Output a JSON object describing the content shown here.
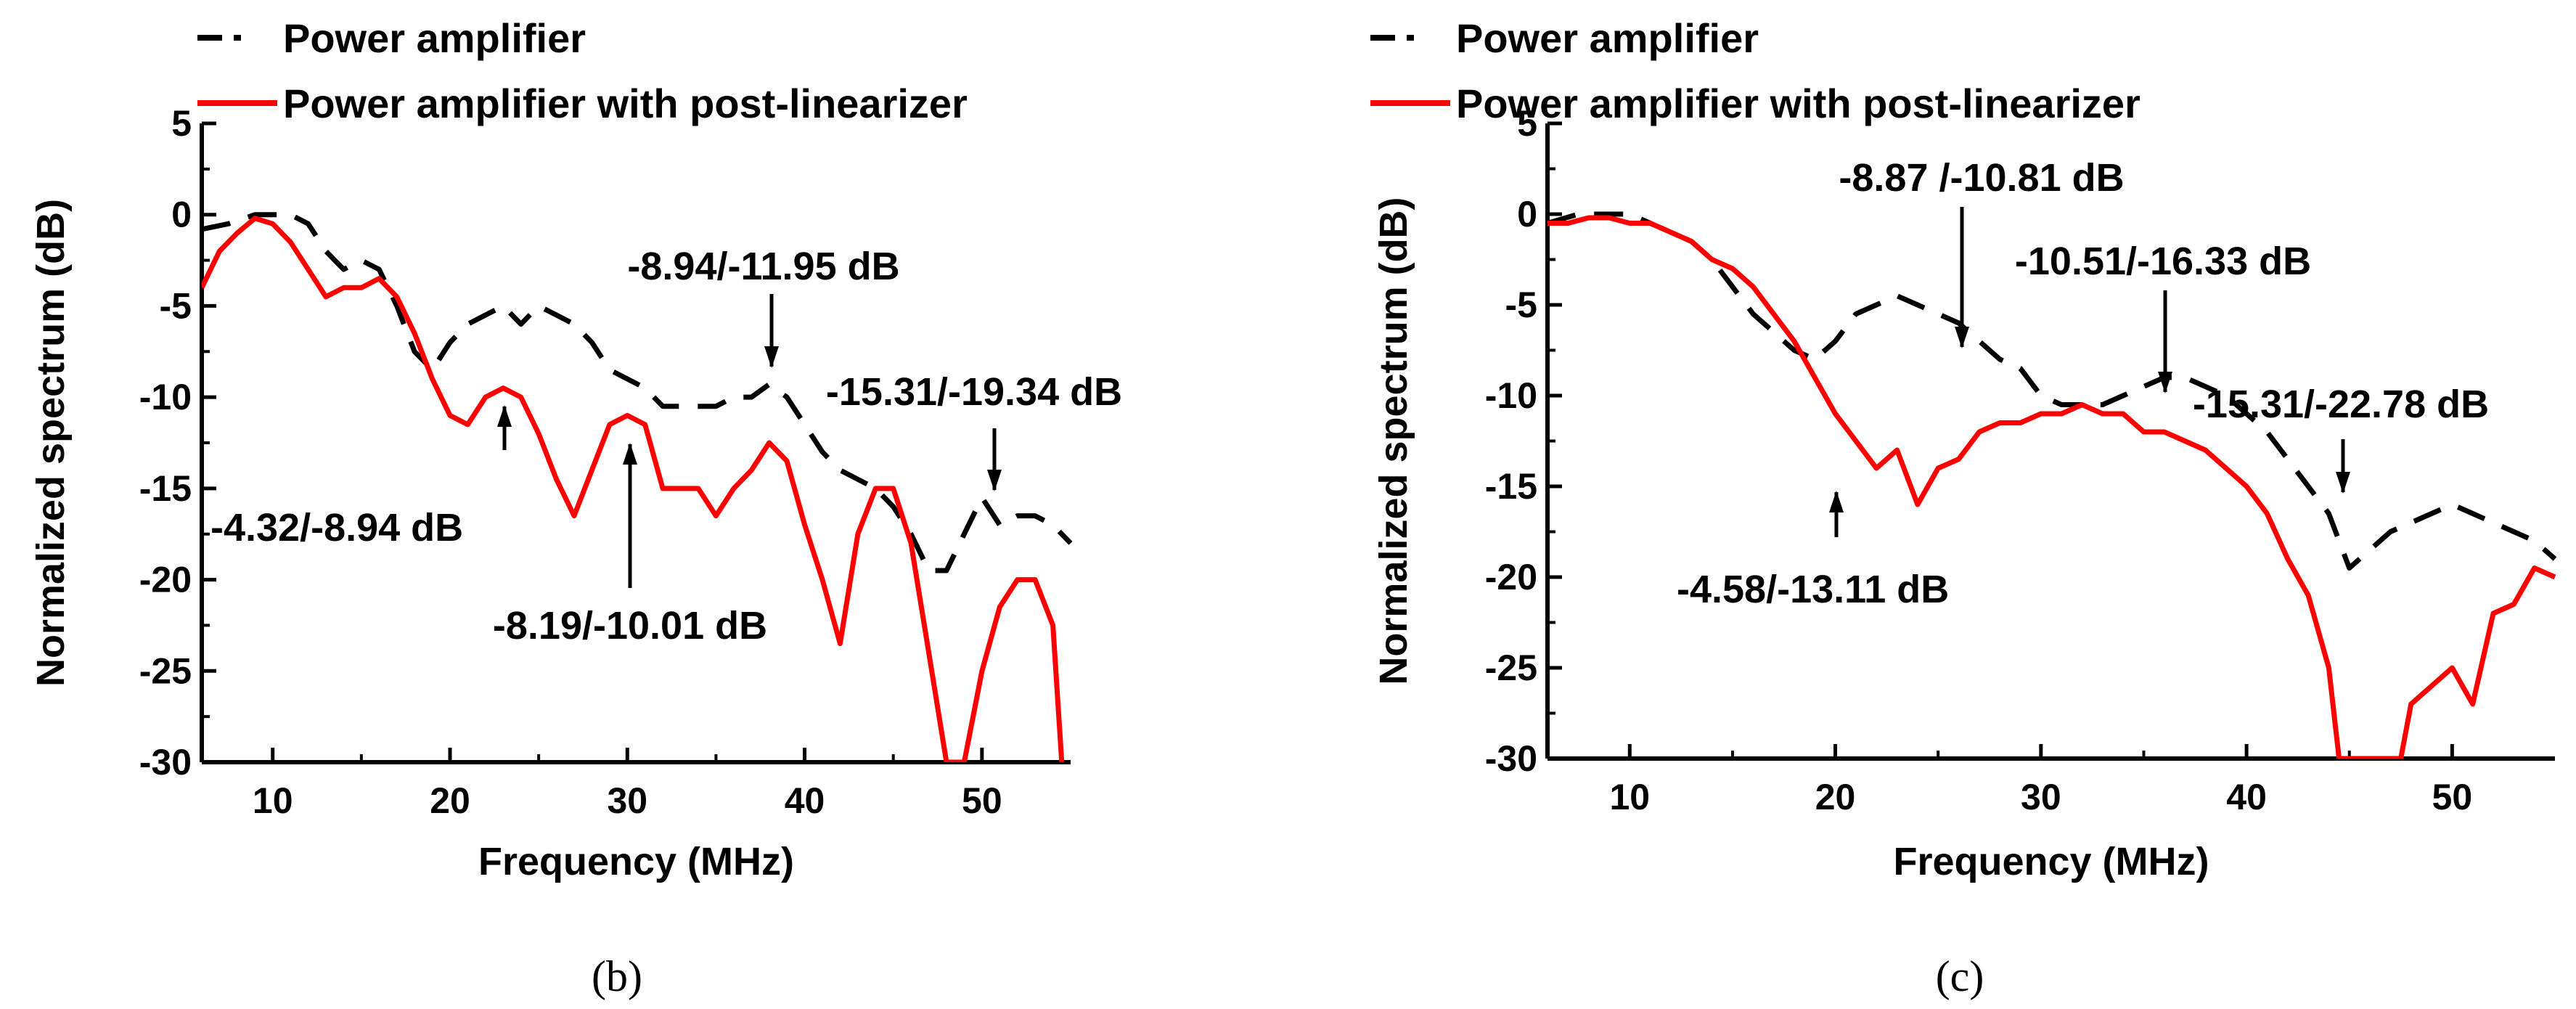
{
  "chart_data": [
    {
      "type": "line",
      "panel_label": "(b)",
      "xlabel": "Frequency (MHz)",
      "ylabel": "Normalized spectrum (dB)",
      "xlim": [
        6,
        55
      ],
      "ylim": [
        -30,
        5
      ],
      "xticks": [
        "10",
        "20",
        "30",
        "40",
        "50"
      ],
      "yticks": [
        "5",
        "0",
        "-5",
        "-10",
        "-15",
        "-20",
        "-25",
        "-30"
      ],
      "legend": [
        "Power amplifier",
        "Power amplifier with post-linearizer"
      ],
      "series": [
        {
          "name": "Power amplifier",
          "color": "#000000",
          "style": "dashed",
          "x": [
            6,
            7.5,
            9,
            10,
            11,
            12,
            13,
            14,
            15,
            16,
            17,
            18,
            19,
            20,
            21,
            22,
            23,
            24,
            25,
            26,
            27,
            28,
            29,
            30,
            31,
            32,
            33,
            34,
            35,
            36,
            37,
            38,
            39,
            40,
            41,
            42,
            43,
            44,
            45,
            46,
            47,
            48,
            49,
            50,
            51,
            52,
            53,
            54,
            55
          ],
          "y": [
            -0.8,
            -0.5,
            0,
            0,
            0,
            -0.5,
            -2,
            -3,
            -2.5,
            -3,
            -5,
            -7.5,
            -8.5,
            -7,
            -6,
            -5.5,
            -5,
            -6,
            -5,
            -5.5,
            -6,
            -7,
            -8.5,
            -9,
            -9.5,
            -10.5,
            -10.5,
            -10.5,
            -10.5,
            -10,
            -10,
            -9.3,
            -10,
            -11.5,
            -13,
            -14,
            -14.5,
            -15,
            -16,
            -17.5,
            -19.5,
            -19.5,
            -17.5,
            -15.5,
            -17,
            -16.5,
            -16.5,
            -17,
            -18
          ]
        },
        {
          "name": "Power amplifier with post-linearizer",
          "color": "#ff0000",
          "style": "solid",
          "x": [
            6,
            7,
            8,
            9,
            10,
            11,
            12,
            13,
            14,
            15,
            16,
            17,
            18,
            19,
            20,
            21,
            22,
            23,
            24,
            25,
            26,
            27,
            28,
            29,
            30,
            31,
            32,
            33,
            34,
            35,
            36,
            37,
            38,
            39,
            40,
            41,
            42,
            43,
            44,
            45,
            46,
            47,
            48,
            48.5,
            49,
            50,
            51,
            52,
            53,
            54,
            54.5
          ],
          "y": [
            -4,
            -2,
            -1,
            -0.2,
            -0.5,
            -1.5,
            -3,
            -4.5,
            -4,
            -4,
            -3.5,
            -4.5,
            -6.5,
            -9,
            -11,
            -11.5,
            -10,
            -9.5,
            -10,
            -12,
            -14.5,
            -16.5,
            -14,
            -11.5,
            -11,
            -11.5,
            -15,
            -15,
            -15,
            -16.5,
            -15,
            -14,
            -12.5,
            -13.5,
            -17,
            -20,
            -23.5,
            -17.5,
            -15,
            -15,
            -18,
            -24,
            -30,
            -30,
            -30,
            -25,
            -21.5,
            -20,
            -20,
            -22.5,
            -30
          ]
        }
      ],
      "annotations": [
        {
          "text": "-4.32/-8.94 dB",
          "x": 22.8,
          "y": -9.2
        },
        {
          "text": "-8.19/-10.01 dB",
          "x": 30.0,
          "y": -10.8
        },
        {
          "text": "-8.94/-11.95 dB",
          "x": 38.0,
          "y": -9.2
        },
        {
          "text": "-15.31/-19.34 dB",
          "x": 50.5,
          "y": -15.5
        }
      ]
    },
    {
      "type": "line",
      "panel_label": "(c)",
      "xlabel": "Frequency (MHz)",
      "ylabel": "Normalized spectrum (dB)",
      "xlim": [
        6,
        55
      ],
      "ylim": [
        -30,
        5
      ],
      "xticks": [
        "10",
        "20",
        "30",
        "40",
        "50"
      ],
      "yticks": [
        "5",
        "0",
        "-5",
        "-10",
        "-15",
        "-20",
        "-25",
        "-30"
      ],
      "legend": [
        "Power amplifier",
        "Power amplifier with post-linearizer"
      ],
      "series": [
        {
          "name": "Power amplifier",
          "color": "#000000",
          "style": "dashed",
          "x": [
            6,
            7.5,
            9,
            10,
            11,
            12,
            13,
            14,
            15,
            16,
            17,
            18,
            19,
            20,
            21,
            22,
            23,
            24,
            25,
            26,
            27,
            28,
            29,
            30,
            31,
            32,
            33,
            34,
            35,
            36,
            37,
            38,
            39,
            40,
            41,
            42,
            43,
            44,
            45,
            46,
            47,
            48,
            49,
            50,
            51,
            52,
            53,
            54,
            55
          ],
          "y": [
            -0.5,
            0,
            0,
            0,
            -0.5,
            -1,
            -1.5,
            -2.5,
            -4,
            -5.5,
            -6.5,
            -7.5,
            -8,
            -7,
            -5.5,
            -5,
            -4.5,
            -5,
            -5.5,
            -6,
            -7,
            -8,
            -8.5,
            -10,
            -10.5,
            -10.5,
            -10.5,
            -10,
            -9.5,
            -9,
            -9,
            -9.5,
            -10,
            -11,
            -12,
            -13.5,
            -15,
            -16.5,
            -19.5,
            -18.5,
            -17.5,
            -17,
            -16.5,
            -16,
            -16.5,
            -17,
            -17.5,
            -18,
            -19
          ]
        },
        {
          "name": "Power amplifier with post-linearizer",
          "color": "#ff0000",
          "style": "solid",
          "x": [
            6,
            7,
            8,
            9,
            10,
            11,
            12,
            13,
            14,
            15,
            16,
            17,
            18,
            19,
            20,
            21,
            22,
            23,
            24,
            25,
            26,
            27,
            28,
            29,
            30,
            31,
            32,
            33,
            34,
            35,
            36,
            37,
            38,
            39,
            40,
            41,
            42,
            43,
            44,
            44.5,
            45,
            46,
            47,
            47.5,
            48,
            49,
            50,
            51,
            52,
            53,
            54,
            55
          ],
          "y": [
            -0.5,
            -0.5,
            -0.2,
            -0.2,
            -0.5,
            -0.5,
            -1,
            -1.5,
            -2.5,
            -3,
            -4,
            -5.5,
            -7,
            -9,
            -11,
            -12.5,
            -14,
            -13,
            -16,
            -14,
            -13.5,
            -12,
            -11.5,
            -11.5,
            -11,
            -11,
            -10.5,
            -11,
            -11,
            -12,
            -12,
            -12.5,
            -13,
            -14,
            -15,
            -16.5,
            -19,
            -21,
            -25,
            -30,
            -30,
            -30,
            -30,
            -30,
            -27,
            -26,
            -25,
            -27,
            -22,
            -21.5,
            -19.5,
            -20
          ]
        }
      ],
      "annotations": [
        {
          "text": "-4.58/-13.11 dB",
          "x": 22.0,
          "y": -13.8
        },
        {
          "text": "-8.87 /-10.81 dB",
          "x": 29.0,
          "y": -8.2
        },
        {
          "text": "-10.51/-16.33 dB",
          "x": 40.5,
          "y": -10.2
        },
        {
          "text": "-15.31/-22.78 dB",
          "x": 50.8,
          "y": -15.5
        }
      ]
    }
  ]
}
